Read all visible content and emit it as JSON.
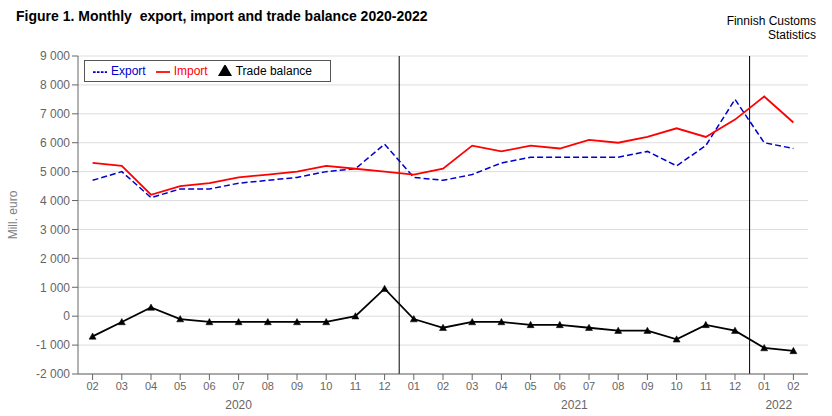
{
  "chart_data": {
    "type": "line",
    "title": "Figure 1. Monthly  export, import and trade balance 2020-2022",
    "y_label": "Mill. euro",
    "annotations": [
      "2020",
      "2021",
      "2022",
      "Finnish Customs\nStatistics"
    ],
    "categories": [
      "02",
      "03",
      "04",
      "05",
      "06",
      "07",
      "08",
      "09",
      "10",
      "11",
      "12",
      "01",
      "02",
      "03",
      "04",
      "05",
      "06",
      "07",
      "08",
      "09",
      "10",
      "11",
      "12",
      "01",
      "02"
    ],
    "series": [
      {
        "name": "Export",
        "color": "#0000CC",
        "line_style": "dashed",
        "values": [
          4700,
          5000,
          4100,
          4400,
          4400,
          4600,
          4700,
          4800,
          5000,
          5100,
          5950,
          4800,
          4700,
          4900,
          5300,
          5500,
          5500,
          5500,
          5500,
          5700,
          5200,
          5900,
          7500,
          6000,
          5800
        ]
      },
      {
        "name": "Import",
        "color": "#FF0000",
        "line_style": "solid",
        "values": [
          5300,
          5200,
          4200,
          4500,
          4600,
          4800,
          4900,
          5000,
          5200,
          5100,
          5000,
          4900,
          5100,
          5900,
          5700,
          5900,
          5800,
          6100,
          6000,
          6200,
          6500,
          6200,
          6800,
          7600,
          6700
        ]
      },
      {
        "name": "Trade balance",
        "color": "#000000",
        "line_style": "solid",
        "marker": "triangle",
        "values": [
          -700,
          -200,
          300,
          -100,
          -200,
          -200,
          -200,
          -200,
          -200,
          0,
          950,
          -100,
          -400,
          -200,
          -200,
          -300,
          -300,
          -400,
          -500,
          -500,
          -800,
          -300,
          -500,
          -1100,
          -1200
        ]
      }
    ],
    "ylim": [
      -2000,
      9000
    ],
    "yticks": [
      {
        "value": -2000,
        "label": "-2 000"
      },
      {
        "value": -1000,
        "label": "-1 000"
      },
      0,
      {
        "value": 1000,
        "label": "1 000"
      },
      {
        "value": 2000,
        "label": "2 000"
      },
      {
        "value": 3000,
        "label": "3 000"
      },
      {
        "value": 4000,
        "label": "4 000"
      },
      {
        "value": 5000,
        "label": "5 000"
      },
      {
        "value": 6000,
        "label": "6 000"
      },
      {
        "value": 7000,
        "label": "7 000"
      },
      {
        "value": 8000,
        "label": "8 000"
      },
      {
        "value": 9000,
        "label": "9 000"
      }
    ],
    "grid": true,
    "legend": "upper left"
  }
}
